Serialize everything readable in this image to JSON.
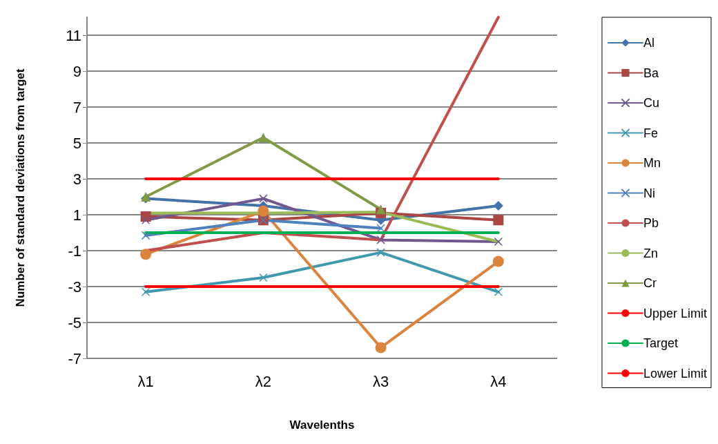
{
  "chart_data": {
    "type": "line",
    "xlabel": "Wavelenths",
    "ylabel": "Number of standard deviations from target",
    "categories": [
      "λ1",
      "λ2",
      "λ3",
      "λ4"
    ],
    "ylim": [
      -7,
      12
    ],
    "yticks": [
      -7,
      -5,
      -3,
      -1,
      1,
      3,
      5,
      7,
      9,
      11
    ],
    "grid": "y",
    "legend": "right",
    "series": [
      {
        "name": "Al",
        "color": "#4572a7",
        "marker": "diamond",
        "values": [
          1.9,
          1.5,
          0.7,
          1.5
        ]
      },
      {
        "name": "Ba",
        "color": "#aa4643",
        "marker": "square",
        "values": [
          0.9,
          0.7,
          1.1,
          0.7
        ]
      },
      {
        "name": "Cu",
        "color": "#71588f",
        "marker": "cross",
        "values": [
          0.7,
          1.9,
          -0.4,
          -0.5
        ]
      },
      {
        "name": "Fe",
        "color": "#4198af",
        "marker": "cross",
        "values": [
          -3.3,
          -2.5,
          -1.1,
          -3.3
        ]
      },
      {
        "name": "Mn",
        "color": "#db843d",
        "marker": "circle",
        "values": [
          -1.2,
          1.2,
          -6.4,
          -1.6
        ]
      },
      {
        "name": "Ni",
        "color": "#4f81bd",
        "marker": "cross",
        "values": [
          -0.15,
          0.7,
          0.25,
          null
        ]
      },
      {
        "name": "Pb",
        "color": "#c0504d",
        "marker": "none",
        "values": [
          -1.0,
          0.0,
          -0.4,
          12
        ]
      },
      {
        "name": "Zn",
        "color": "#9bbb59",
        "marker": "none",
        "values": [
          1.1,
          1.1,
          1.15,
          -0.5
        ]
      },
      {
        "name": "Cr",
        "color": "#7f9b46",
        "marker": "triangle",
        "values": [
          2.0,
          5.3,
          1.3,
          null
        ]
      },
      {
        "name": "Upper Limit",
        "color": "#ff0000",
        "marker": "none",
        "values": [
          3,
          3,
          3,
          3
        ]
      },
      {
        "name": "Target",
        "color": "#00b050",
        "marker": "none",
        "values": [
          0,
          0,
          0,
          0
        ]
      },
      {
        "name": "Lower Limit",
        "color": "#ff0000",
        "marker": "none",
        "values": [
          -3,
          -3,
          -3,
          -3
        ]
      }
    ]
  }
}
